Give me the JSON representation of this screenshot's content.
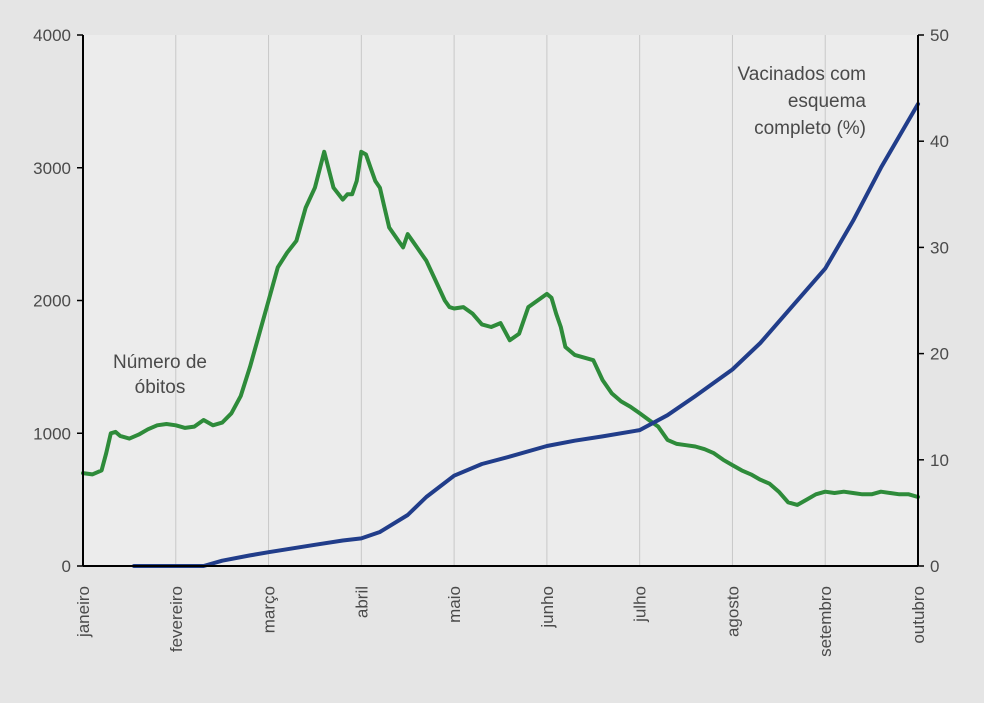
{
  "chart_data": {
    "type": "line",
    "title": "",
    "x_categories": [
      "janeiro",
      "fevereiro",
      "março",
      "abril",
      "maio",
      "junho",
      "julho",
      "agosto",
      "setembro",
      "outubro"
    ],
    "left_axis": {
      "ylim": [
        0,
        4000
      ],
      "ticks": [
        "0",
        "1000",
        "2000",
        "3000",
        "4000"
      ]
    },
    "right_axis": {
      "ylim": [
        0,
        50
      ],
      "ticks": [
        "0",
        "10",
        "20",
        "30",
        "40",
        "50"
      ]
    },
    "grid": "vertical",
    "annotations": {
      "deaths_label": [
        "Número de",
        "óbitos"
      ],
      "vaccinated_label": [
        "Vacinados com",
        "esquema",
        "completo  (%)"
      ]
    },
    "series": [
      {
        "name": "Número de óbitos",
        "axis": "left",
        "color": "#2e8b3a",
        "x": [
          0,
          0.1,
          0.2,
          0.25,
          0.3,
          0.35,
          0.4,
          0.5,
          0.6,
          0.7,
          0.8,
          0.9,
          1.0,
          1.1,
          1.2,
          1.3,
          1.4,
          1.5,
          1.6,
          1.7,
          1.8,
          1.9,
          2.0,
          2.1,
          2.2,
          2.3,
          2.4,
          2.5,
          2.6,
          2.7,
          2.8,
          2.85,
          2.9,
          2.95,
          3.0,
          3.05,
          3.1,
          3.15,
          3.2,
          3.25,
          3.3,
          3.35,
          3.4,
          3.45,
          3.5,
          3.55,
          3.6,
          3.65,
          3.7,
          3.8,
          3.9,
          3.95,
          4.0,
          4.1,
          4.2,
          4.3,
          4.4,
          4.5,
          4.6,
          4.7,
          4.8,
          4.9,
          5.0,
          5.05,
          5.1,
          5.15,
          5.2,
          5.3,
          5.4,
          5.5,
          5.6,
          5.7,
          5.8,
          5.9,
          6.0,
          6.1,
          6.2,
          6.3,
          6.4,
          6.5,
          6.6,
          6.7,
          6.8,
          6.9,
          7.0,
          7.1,
          7.2,
          7.3,
          7.4,
          7.5,
          7.6,
          7.7,
          7.8,
          7.9,
          8.0,
          8.1,
          8.2,
          8.3,
          8.4,
          8.5,
          8.6,
          8.7,
          8.8,
          8.9,
          9.0
        ],
        "values": [
          700,
          690,
          720,
          850,
          1000,
          1010,
          980,
          960,
          990,
          1030,
          1060,
          1070,
          1060,
          1040,
          1050,
          1100,
          1060,
          1080,
          1150,
          1280,
          1500,
          1750,
          2000,
          2250,
          2360,
          2450,
          2700,
          2850,
          3120,
          2850,
          2760,
          2800,
          2800,
          2900,
          3120,
          3100,
          3000,
          2900,
          2850,
          2700,
          2550,
          2500,
          2450,
          2400,
          2500,
          2450,
          2400,
          2350,
          2300,
          2150,
          2000,
          1950,
          1940,
          1950,
          1900,
          1820,
          1800,
          1830,
          1700,
          1750,
          1950,
          2000,
          2050,
          2020,
          1900,
          1800,
          1650,
          1590,
          1570,
          1550,
          1400,
          1300,
          1240,
          1200,
          1150,
          1100,
          1050,
          950,
          920,
          910,
          900,
          880,
          850,
          800,
          760,
          720,
          690,
          650,
          620,
          560,
          480,
          460,
          500,
          540,
          560,
          550,
          560,
          550,
          540,
          540,
          560,
          550,
          540,
          540,
          520
        ]
      },
      {
        "name": "Vacinados com esquema completo (%)",
        "axis": "right",
        "color": "#213d8a",
        "x": [
          0.55,
          1.0,
          1.3,
          1.5,
          1.8,
          2.0,
          2.5,
          2.8,
          3.0,
          3.2,
          3.5,
          3.7,
          4.0,
          4.3,
          4.6,
          5.0,
          5.3,
          5.6,
          6.0,
          6.3,
          6.6,
          7.0,
          7.3,
          7.6,
          8.0,
          8.3,
          8.6,
          9.0
        ],
        "values": [
          0,
          0,
          0,
          0.5,
          1.0,
          1.3,
          2.0,
          2.4,
          2.6,
          3.2,
          4.8,
          6.5,
          8.5,
          9.6,
          10.3,
          11.3,
          11.8,
          12.2,
          12.8,
          14.2,
          16.0,
          18.5,
          21.0,
          24.0,
          28.0,
          32.5,
          37.5,
          43.5
        ]
      }
    ]
  }
}
